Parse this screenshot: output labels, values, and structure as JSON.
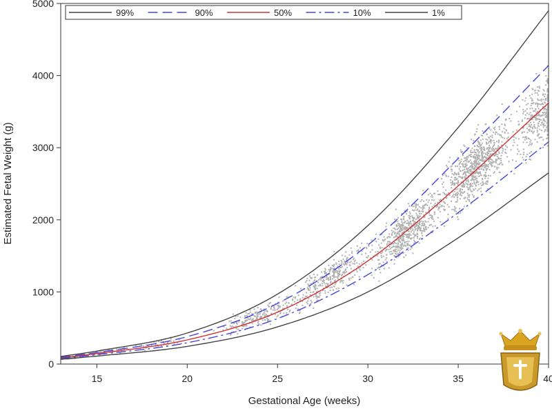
{
  "chart_data": {
    "type": "line",
    "xlabel": "Gestational Age (weeks)",
    "ylabel": "Estimated Fetal Weight (g)",
    "xlim": [
      13,
      40
    ],
    "ylim": [
      0,
      5000
    ],
    "x_ticks": [
      15,
      20,
      25,
      30,
      35,
      40
    ],
    "y_ticks": [
      0,
      1000,
      2000,
      3000,
      4000,
      5000
    ],
    "x_tick_labels": [
      "15",
      "20",
      "25",
      "30",
      "35",
      "40"
    ],
    "y_tick_labels": [
      "0",
      "1000",
      "2000",
      "3000",
      "4000",
      "5000"
    ],
    "grid": false,
    "legend_position": "top",
    "x": [
      13,
      15,
      20,
      25,
      30,
      35,
      40
    ],
    "series": [
      {
        "name": "99%",
        "color": "#444444",
        "dash": "solid",
        "values": [
          105,
          180,
          430,
          970,
          1920,
          3280,
          4900
        ]
      },
      {
        "name": "90%",
        "color": "#4444dd",
        "dash": "dashed",
        "values": [
          95,
          160,
          380,
          840,
          1650,
          2850,
          4140
        ]
      },
      {
        "name": "50%",
        "color": "#cc3333",
        "dash": "solid",
        "values": [
          85,
          145,
          335,
          720,
          1430,
          2470,
          3620
        ]
      },
      {
        "name": "10%",
        "color": "#4444dd",
        "dash": "dashdot",
        "values": [
          75,
          130,
          295,
          630,
          1240,
          2100,
          3080
        ]
      },
      {
        "name": "1%",
        "color": "#444444",
        "dash": "solid",
        "values": [
          65,
          110,
          245,
          515,
          1000,
          1750,
          2650
        ]
      }
    ],
    "scatter": {
      "color": "#b0b0b0",
      "clusters": [
        {
          "x": 13.5,
          "y_center": 88,
          "spread": 15,
          "width": 0.7,
          "count": 60
        },
        {
          "x": 15.5,
          "y_center": 170,
          "spread": 30,
          "width": 1.2,
          "count": 50
        },
        {
          "x": 18.5,
          "y_center": 280,
          "spread": 50,
          "width": 1.5,
          "count": 50
        },
        {
          "x": 24,
          "y_center": 650,
          "spread": 130,
          "width": 2.0,
          "count": 220
        },
        {
          "x": 28,
          "y_center": 1200,
          "spread": 230,
          "width": 2.0,
          "count": 350
        },
        {
          "x": 32.2,
          "y_center": 1850,
          "spread": 300,
          "width": 1.8,
          "count": 600
        },
        {
          "x": 36,
          "y_center": 2750,
          "spread": 400,
          "width": 1.8,
          "count": 800
        },
        {
          "x": 39.5,
          "y_center": 3450,
          "spread": 450,
          "width": 1.2,
          "count": 350
        }
      ]
    }
  }
}
